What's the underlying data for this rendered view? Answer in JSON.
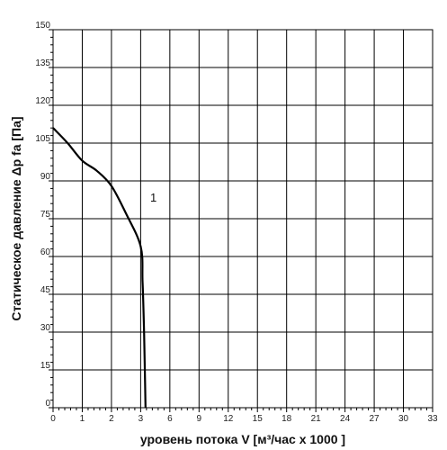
{
  "chart_data": {
    "type": "line",
    "xlabel": "уровень потока  V [м³/час x 1000 ]",
    "ylabel": "Статическое давление  Δp fa [Па]",
    "grid": true,
    "x_ticks": [
      "0",
      "1",
      "2",
      "3",
      "6",
      "9",
      "12",
      "15",
      "18",
      "21",
      "24",
      "27",
      "30",
      "33"
    ],
    "y_ticks": [
      0,
      15,
      30,
      45,
      60,
      75,
      90,
      105,
      120,
      135,
      150
    ],
    "ylim": [
      0,
      150
    ],
    "series": [
      {
        "name": "1",
        "x": [
          0,
          0.5,
          1.0,
          1.5,
          2.0,
          2.5,
          3.0,
          3.2,
          3.35,
          3.45,
          3.5
        ],
        "y": [
          111,
          105,
          98,
          94,
          88,
          77,
          64,
          50,
          30,
          10,
          0
        ]
      }
    ]
  }
}
